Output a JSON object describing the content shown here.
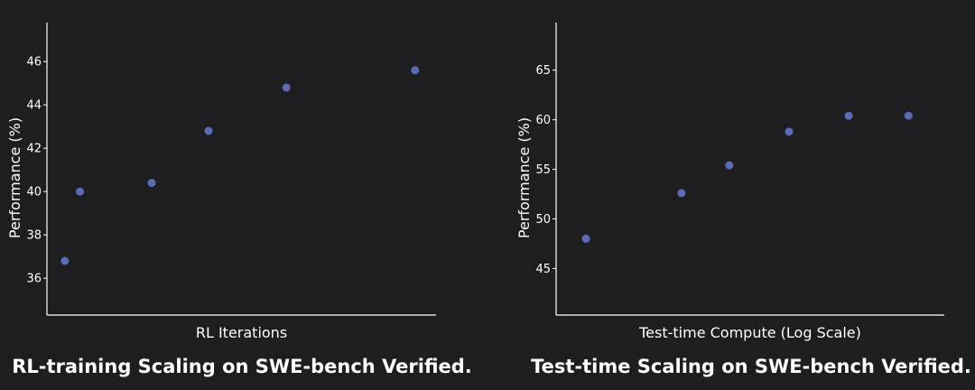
{
  "theme": {
    "background": "#1e1e21",
    "axis_color": "#ffffff",
    "text_color": "#ffffff",
    "point_color": "#5b6bb5"
  },
  "chart_data": [
    {
      "type": "scatter",
      "caption": "RL-training Scaling on SWE-bench Verified.",
      "xlabel": "RL Iterations",
      "ylabel": "Performance (%)",
      "x_tick_labels": false,
      "xlim": [
        0,
        6.5
      ],
      "ylim": [
        34.3,
        47.8
      ],
      "yticks": [
        36,
        38,
        40,
        42,
        44,
        46
      ],
      "points": [
        {
          "x": 0.3,
          "y": 36.8
        },
        {
          "x": 0.55,
          "y": 40.0
        },
        {
          "x": 1.75,
          "y": 40.4
        },
        {
          "x": 2.7,
          "y": 42.8
        },
        {
          "x": 4.0,
          "y": 44.8
        },
        {
          "x": 6.15,
          "y": 45.6
        }
      ]
    },
    {
      "type": "scatter",
      "caption": "Test-time Scaling on SWE-bench Verified.",
      "xlabel": "Test-time Compute (Log Scale)",
      "ylabel": "Performance (%)",
      "x_tick_labels": false,
      "xlim": [
        0,
        6.5
      ],
      "ylim": [
        40.3,
        69.8
      ],
      "yticks": [
        45,
        50,
        55,
        60,
        65
      ],
      "points": [
        {
          "x": 0.5,
          "y": 48.0
        },
        {
          "x": 2.1,
          "y": 52.6
        },
        {
          "x": 2.9,
          "y": 55.4
        },
        {
          "x": 3.9,
          "y": 58.8
        },
        {
          "x": 4.9,
          "y": 60.4
        },
        {
          "x": 5.9,
          "y": 60.4
        }
      ]
    }
  ]
}
